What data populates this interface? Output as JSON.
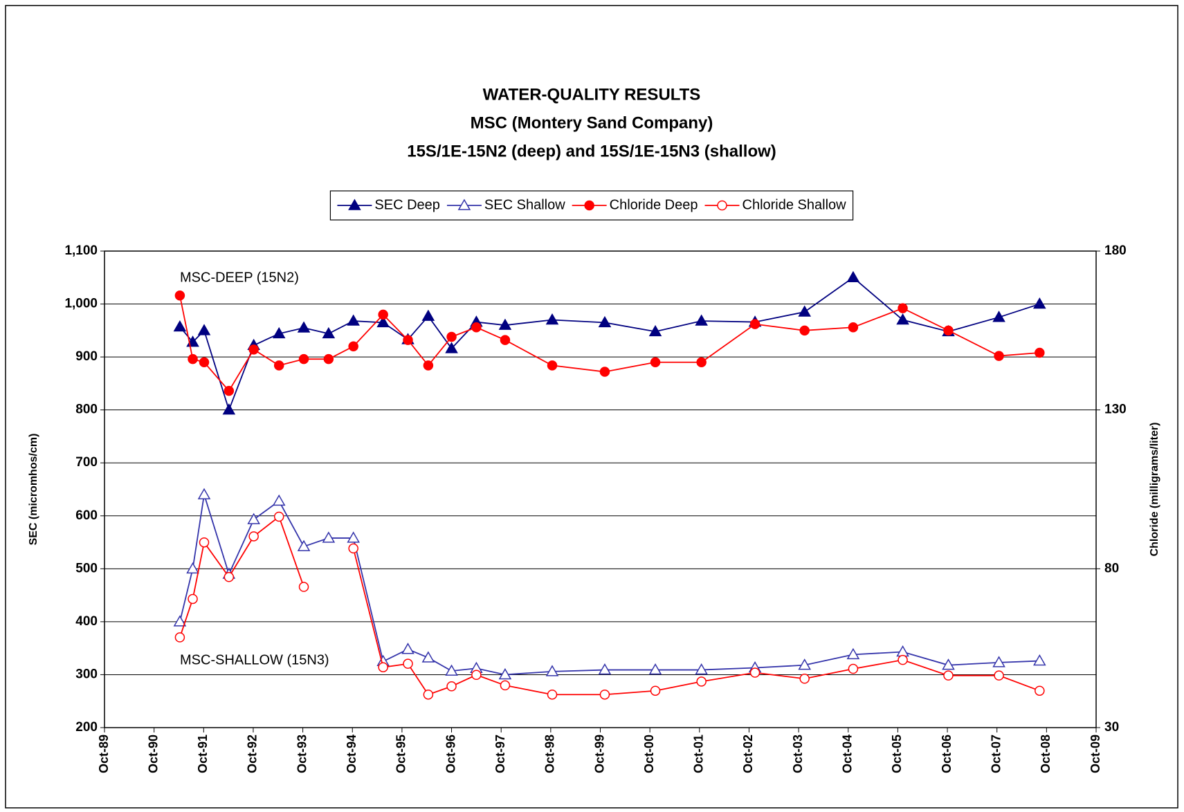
{
  "chart_data": {
    "type": "line",
    "title": [
      "WATER-QUALITY RESULTS",
      "MSC (Montery Sand Company)",
      "15S/1E-15N2 (deep) and 15S/1E-15N3 (shallow)"
    ],
    "y_label": "SEC (micromhos/cm)",
    "y2_label": "Chloride (milligrams/liter)",
    "annotations": [
      "MSC-DEEP (15N2)",
      "MSC-SHALLOW (15N3)"
    ],
    "x": [
      1991.27,
      1991.53,
      1991.76,
      1992.26,
      1992.76,
      1993.27,
      1993.77,
      1994.27,
      1994.77,
      1995.37,
      1995.87,
      1996.28,
      1996.75,
      1997.25,
      1997.83,
      1998.78,
      1999.84,
      2000.86,
      2001.79,
      2002.87,
      2003.87,
      2004.85,
      2005.85,
      2006.77,
      2007.79,
      2008.61
    ],
    "series": [
      {
        "name": "SEC Deep",
        "color": "#000080",
        "marker": "triangle",
        "filled": true,
        "axis": "y",
        "values": [
          957,
          928,
          950,
          800,
          922,
          944,
          955,
          944,
          968,
          965,
          933,
          977,
          916,
          966,
          960,
          970,
          965,
          948,
          968,
          966,
          985,
          1050,
          970,
          948,
          975,
          1000
        ]
      },
      {
        "name": "SEC Shallow",
        "color": "#3333aa",
        "marker": "triangle",
        "filled": false,
        "axis": "y",
        "values": [
          400,
          500,
          640,
          490,
          593,
          628,
          542,
          558,
          558,
          325,
          348,
          332,
          307,
          312,
          300,
          306,
          309,
          309,
          309,
          313,
          318,
          338,
          343,
          318,
          323,
          326
        ]
      },
      {
        "name": "Chloride Deep",
        "color": "#ff0000",
        "marker": "circle",
        "filled": true,
        "axis": "y2",
        "values": [
          166,
          146,
          145,
          136,
          149,
          144,
          146,
          146,
          150,
          160,
          152,
          144,
          153,
          156,
          152,
          144,
          142,
          145,
          145,
          157,
          155,
          156,
          162,
          155,
          147,
          148
        ]
      },
      {
        "name": "Chloride Shallow",
        "color": "#ff0000",
        "marker": "circle",
        "filled": false,
        "axis": "y2",
        "values": [
          58.4,
          70.5,
          88.3,
          77.4,
          90.2,
          96.4,
          74.3,
          null,
          86.4,
          49,
          50.1,
          40.4,
          43,
          46.6,
          43.3,
          40.4,
          40.4,
          41.6,
          44.5,
          47.3,
          45.4,
          48.5,
          51.3,
          46.4,
          46.4,
          41.6
        ]
      }
    ],
    "xlim": [
      1989.75,
      2009.75
    ],
    "xticks": [
      {
        "value": 1989.75,
        "label": "Oct-89"
      },
      {
        "value": 1990.75,
        "label": "Oct-90"
      },
      {
        "value": 1991.75,
        "label": "Oct-91"
      },
      {
        "value": 1992.75,
        "label": "Oct-92"
      },
      {
        "value": 1993.75,
        "label": "Oct-93"
      },
      {
        "value": 1994.75,
        "label": "Oct-94"
      },
      {
        "value": 1995.75,
        "label": "Oct-95"
      },
      {
        "value": 1996.75,
        "label": "Oct-96"
      },
      {
        "value": 1997.75,
        "label": "Oct-97"
      },
      {
        "value": 1998.75,
        "label": "Oct-98"
      },
      {
        "value": 1999.75,
        "label": "Oct-99"
      },
      {
        "value": 2000.75,
        "label": "Oct-00"
      },
      {
        "value": 2001.75,
        "label": "Oct-01"
      },
      {
        "value": 2002.75,
        "label": "Oct-02"
      },
      {
        "value": 2003.75,
        "label": "Oct-03"
      },
      {
        "value": 2004.75,
        "label": "Oct-04"
      },
      {
        "value": 2005.75,
        "label": "Oct-05"
      },
      {
        "value": 2006.75,
        "label": "Oct-06"
      },
      {
        "value": 2007.75,
        "label": "Oct-07"
      },
      {
        "value": 2008.75,
        "label": "Oct-08"
      },
      {
        "value": 2009.75,
        "label": "Oct-09"
      }
    ],
    "ylim": [
      200,
      1100
    ],
    "yticks": [
      200,
      300,
      400,
      500,
      600,
      700,
      800,
      900,
      {
        "value": 1000,
        "label": "1,000"
      },
      {
        "value": 1100,
        "label": "1,100"
      }
    ],
    "y2lim": [
      30,
      180
    ],
    "y2ticks": [
      30,
      80,
      130,
      180
    ],
    "grid": true,
    "legend": "top"
  }
}
